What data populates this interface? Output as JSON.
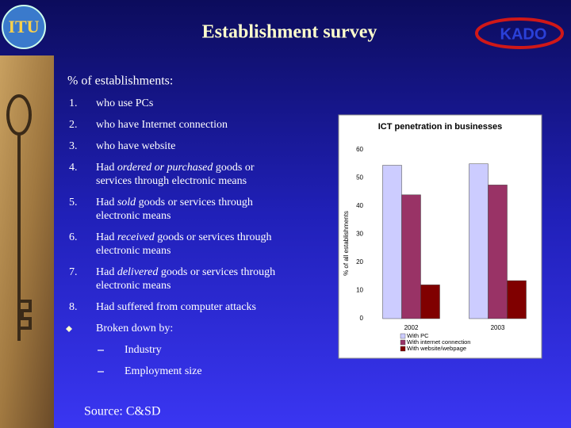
{
  "slide": {
    "logos": {
      "left": "ITU",
      "right": "KADO"
    },
    "title": "Establishment survey",
    "heading": "% of establishments:",
    "items": [
      {
        "number": "1.",
        "lines": [
          [
            {
              "text": "who use PCs"
            }
          ]
        ]
      },
      {
        "number": "2.",
        "lines": [
          [
            {
              "text": "who have Internet connection"
            }
          ]
        ]
      },
      {
        "number": "3.",
        "lines": [
          [
            {
              "text": "who have website"
            }
          ]
        ]
      },
      {
        "number": "4.",
        "lines": [
          [
            {
              "text": "Had "
            },
            {
              "text": "ordered or purchased",
              "italic": true
            },
            {
              "text": " goods or"
            }
          ],
          [
            {
              "text": "services through electronic means"
            }
          ]
        ]
      },
      {
        "number": "5.",
        "lines": [
          [
            {
              "text": "Had "
            },
            {
              "text": "sold",
              "italic": true
            },
            {
              "text": " goods or services through"
            }
          ],
          [
            {
              "text": "electronic means"
            }
          ]
        ]
      },
      {
        "number": "6.",
        "lines": [
          [
            {
              "text": "Had "
            },
            {
              "text": "received",
              "italic": true
            },
            {
              "text": " goods or services through"
            }
          ],
          [
            {
              "text": "electronic means"
            }
          ]
        ]
      },
      {
        "number": "7.",
        "lines": [
          [
            {
              "text": "Had "
            },
            {
              "text": "delivered",
              "italic": true
            },
            {
              "text": " goods or services through"
            }
          ],
          [
            {
              "text": "electronic means"
            }
          ]
        ]
      },
      {
        "number": "8.",
        "lines": [
          [
            {
              "text": "Had suffered from computer attacks"
            }
          ]
        ]
      },
      {
        "marker": "diamond",
        "lines": [
          [
            {
              "text": "Broken down by:"
            }
          ]
        ]
      },
      {
        "marker": "dash",
        "lines": [
          [
            {
              "text": "Industry"
            }
          ]
        ]
      },
      {
        "marker": "dash",
        "lines": [
          [
            {
              "text": "Employment size"
            }
          ]
        ]
      }
    ],
    "source": "Source: C&SD"
  },
  "chart_data": {
    "type": "bar",
    "title": "ICT penetration in businesses",
    "y_label": "% of all establishments",
    "categories": [
      "2002",
      "2003"
    ],
    "series": [
      {
        "name": "With PC",
        "color": "#ccccff",
        "values": [
          54.5,
          55
        ]
      },
      {
        "name": "With internet connection",
        "color": "#993366",
        "values": [
          44,
          47.5
        ]
      },
      {
        "name": "With website/webpage",
        "color": "#800000",
        "values": [
          12,
          13.5
        ]
      }
    ],
    "ylim": [
      0,
      60
    ],
    "yticks": [
      0,
      10,
      20,
      30,
      40,
      50,
      60
    ],
    "grid": false
  }
}
